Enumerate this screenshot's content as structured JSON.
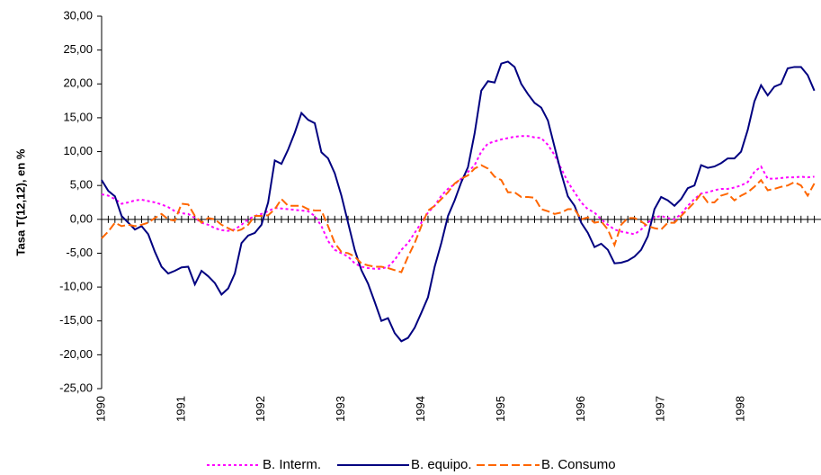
{
  "chart_data": {
    "type": "line",
    "y_label": "Tasa T(12,12), en %",
    "categories": [
      "1990",
      null,
      null,
      null,
      null,
      null,
      null,
      null,
      null,
      null,
      null,
      null,
      "1991",
      null,
      null,
      null,
      null,
      null,
      null,
      null,
      null,
      null,
      null,
      null,
      "1992",
      null,
      null,
      null,
      null,
      null,
      null,
      null,
      null,
      null,
      null,
      null,
      "1993",
      null,
      null,
      null,
      null,
      null,
      null,
      null,
      null,
      null,
      null,
      null,
      "1994",
      null,
      null,
      null,
      null,
      null,
      null,
      null,
      null,
      null,
      null,
      null,
      "1995",
      null,
      null,
      null,
      null,
      null,
      null,
      null,
      null,
      null,
      null,
      null,
      "1996",
      null,
      null,
      null,
      null,
      null,
      null,
      null,
      null,
      null,
      null,
      null,
      "1997",
      null,
      null,
      null,
      null,
      null,
      null,
      null,
      null,
      null,
      null,
      null,
      "1998",
      null,
      null,
      null,
      null,
      null,
      null,
      null,
      null,
      null,
      null,
      null
    ],
    "ylim": [
      -25,
      30
    ],
    "yticks": [
      {
        "value": 30,
        "label": "30,00"
      },
      {
        "value": 25,
        "label": "25,00"
      },
      {
        "value": 20,
        "label": "20,00"
      },
      {
        "value": 15,
        "label": "15,00"
      },
      {
        "value": 10,
        "label": "10,00"
      },
      {
        "value": 5,
        "label": "5,00"
      },
      {
        "value": 0,
        "label": "0,00"
      },
      {
        "value": -5,
        "label": "-5,00"
      },
      {
        "value": -10,
        "label": "-10,00"
      },
      {
        "value": -15,
        "label": "-15,00"
      },
      {
        "value": -20,
        "label": "-20,00"
      },
      {
        "value": -25,
        "label": "-25,00"
      }
    ],
    "legend": "bottom",
    "series": [
      {
        "name": "B. Interm.",
        "color": "#ff00ff",
        "dash": "dotted",
        "values": [
          3.7,
          3.5,
          3.0,
          2.3,
          2.5,
          2.8,
          2.9,
          2.7,
          2.5,
          2.2,
          1.8,
          1.2,
          0.9,
          0.8,
          0.2,
          -0.5,
          -0.8,
          -1.3,
          -1.6,
          -1.7,
          -1.5,
          -0.8,
          0,
          0.5,
          0.8,
          1.2,
          1.7,
          1.6,
          1.5,
          1.4,
          1.3,
          1.2,
          0.5,
          -1.0,
          -3.2,
          -4.5,
          -5.0,
          -5.5,
          -6.5,
          -7.0,
          -7.2,
          -7.3,
          -7.3,
          -7.0,
          -6.0,
          -4.5,
          -3.5,
          -2.0,
          -0.5,
          1.0,
          2.0,
          3.5,
          4.5,
          5.2,
          6.0,
          7.0,
          8.0,
          10.0,
          11.2,
          11.5,
          11.8,
          12.0,
          12.2,
          12.3,
          12.3,
          12.1,
          12.0,
          11.0,
          9.5,
          7.5,
          5.5,
          4.0,
          2.5,
          1.5,
          1.0,
          0,
          -0.8,
          -1.5,
          -1.8,
          -2.0,
          -2.2,
          -1.5,
          -0.5,
          0.3,
          0.5,
          0.2,
          0.0,
          0.8,
          2.0,
          3.0,
          3.8,
          4.0,
          4.3,
          4.5,
          4.5,
          4.7,
          5.0,
          5.5,
          7.0,
          7.8,
          6.0,
          6.0,
          6.1,
          6.2,
          6.2,
          6.3,
          6.2,
          6.3
        ]
      },
      {
        "name": "B. equipo.",
        "color": "#000080",
        "dash": "solid",
        "values": [
          5.8,
          4.2,
          3.4,
          0.5,
          -0.5,
          -1.5,
          -1.0,
          -2.2,
          -4.8,
          -7,
          -8,
          -7.6,
          -7.1,
          -7.0,
          -9.6,
          -7.6,
          -8.4,
          -9.4,
          -11.1,
          -10.2,
          -8,
          -3.5,
          -2.4,
          -2.0,
          -0.8,
          2.5,
          8.7,
          8.2,
          10.3,
          12.8,
          15.7,
          14.7,
          14.2,
          9.9,
          9.0,
          6.8,
          3.5,
          -0.5,
          -4.5,
          -7.5,
          -9.5,
          -12.2,
          -15,
          -14.6,
          -16.8,
          -18,
          -17.5,
          -16,
          -13.8,
          -11.5,
          -7,
          -3.5,
          0.5,
          2.8,
          5.5,
          7.7,
          12.7,
          19.0,
          20.4,
          20.2,
          23.0,
          23.3,
          22.5,
          20,
          18.5,
          17.2,
          16.5,
          14.6,
          10.7,
          6.8,
          3.4,
          2.0,
          -0.5,
          -2.0,
          -4.1,
          -3.6,
          -4.5,
          -6.5,
          -6.4,
          -6.1,
          -5.5,
          -4.5,
          -2.5,
          1.5,
          3.3,
          2.8,
          2.0,
          3.0,
          4.6,
          5.0,
          8.0,
          7.6,
          7.8,
          8.3,
          9.0,
          9.0,
          10.0,
          13.2,
          17.4,
          19.8,
          18.3,
          19.6,
          20.0,
          22.3,
          22.5,
          22.5,
          21.3,
          19.0
        ]
      },
      {
        "name": "B. Consumo",
        "color": "#ff6600",
        "dash": "dashed",
        "values": [
          -2.8,
          -1.8,
          -0.5,
          -1.0,
          -0.8,
          -1.0,
          -0.8,
          -0.5,
          0.2,
          0.8,
          0.0,
          -0.2,
          2.3,
          2.2,
          0.5,
          -0.5,
          0.2,
          0,
          -0.8,
          -1.3,
          -1.8,
          -1.5,
          -0.8,
          0.5,
          0.5,
          0.6,
          1.5,
          3.0,
          2.0,
          2.0,
          2.0,
          1.5,
          1.3,
          1.3,
          -1.0,
          -3.5,
          -4.8,
          -5.0,
          -5.5,
          -6.5,
          -6.8,
          -7.0,
          -7.0,
          -7.2,
          -7.5,
          -7.8,
          -5.5,
          -3.5,
          -1.0,
          1.3,
          2.0,
          3.0,
          4.0,
          5.3,
          6.0,
          6.5,
          7.5,
          8.0,
          7.5,
          6.3,
          5.8,
          4.0,
          4.0,
          3.3,
          3.3,
          3.2,
          1.5,
          1.2,
          0.8,
          1.0,
          1.5,
          1.5,
          0,
          0.3,
          -0.5,
          -0.3,
          -1.5,
          -3.8,
          -0.8,
          0.2,
          0.2,
          -0.3,
          -1.0,
          -1.3,
          -1.5,
          -0.5,
          -0.5,
          0.5,
          1.5,
          2.5,
          3.8,
          2.5,
          2.5,
          3.5,
          3.8,
          2.8,
          3.5,
          4.0,
          4.8,
          5.8,
          4.3,
          4.5,
          4.8,
          5.0,
          5.5,
          5.0,
          3.5,
          5.3
        ]
      }
    ]
  }
}
